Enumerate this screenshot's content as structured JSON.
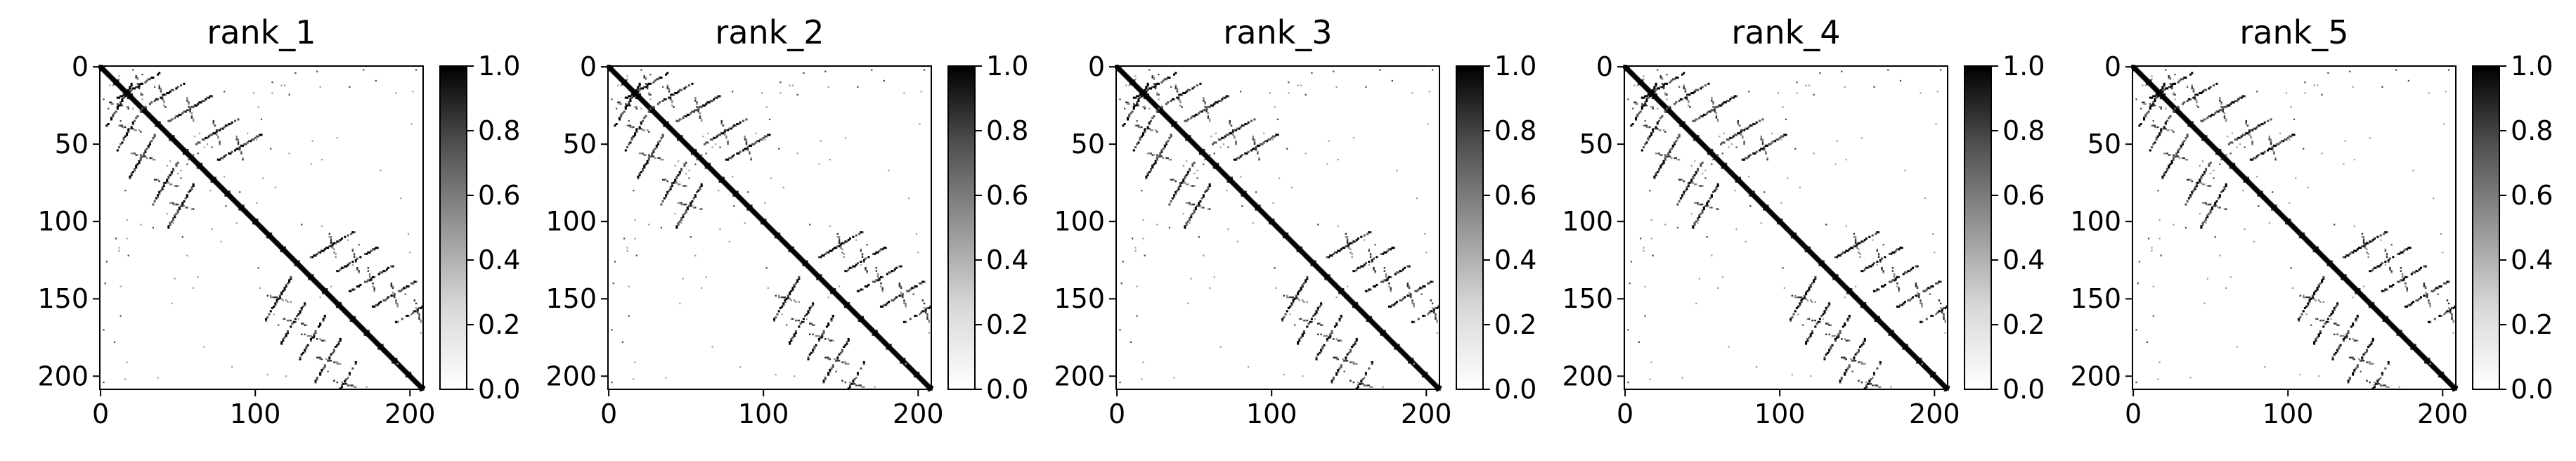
{
  "figure": {
    "background": "#ffffff"
  },
  "chart_data": [
    {
      "type": "heatmap",
      "title": "rank_1",
      "xticks": [
        "0",
        "100",
        "200"
      ],
      "yticks": [
        "0",
        "50",
        "100",
        "150",
        "200"
      ],
      "xlim": [
        0,
        209
      ],
      "ylim": [
        209,
        0
      ],
      "matrix_size": 209,
      "colorbar": {
        "min": 0.0,
        "max": 1.0,
        "ticks": [
          "0.0",
          "0.2",
          "0.4",
          "0.6",
          "0.8",
          "1.0"
        ],
        "colormap": "Greys"
      },
      "features": {
        "main_diagonal": {
          "from": 0,
          "to": 208,
          "value": 1.0
        },
        "off_diagonal_arcs": [
          {
            "i": 5,
            "j": 25
          },
          {
            "i": 12,
            "j": 40
          },
          {
            "i": 20,
            "j": 58
          },
          {
            "i": 35,
            "j": 75
          },
          {
            "i": 45,
            "j": 90
          },
          {
            "i": 108,
            "j": 150
          },
          {
            "i": 118,
            "j": 165
          },
          {
            "i": 130,
            "j": 175
          },
          {
            "i": 140,
            "j": 190
          },
          {
            "i": 150,
            "j": 205
          }
        ]
      }
    },
    {
      "type": "heatmap",
      "title": "rank_2",
      "xticks": [
        "0",
        "100",
        "200"
      ],
      "yticks": [
        "0",
        "50",
        "100",
        "150",
        "200"
      ],
      "xlim": [
        0,
        209
      ],
      "ylim": [
        209,
        0
      ],
      "matrix_size": 209,
      "colorbar": {
        "min": 0.0,
        "max": 1.0,
        "ticks": [
          "0.0",
          "0.2",
          "0.4",
          "0.6",
          "0.8",
          "1.0"
        ],
        "colormap": "Greys"
      },
      "features": {
        "main_diagonal": {
          "from": 0,
          "to": 208,
          "value": 1.0
        },
        "off_diagonal_arcs": [
          {
            "i": 5,
            "j": 25
          },
          {
            "i": 12,
            "j": 40
          },
          {
            "i": 20,
            "j": 58
          },
          {
            "i": 35,
            "j": 75
          },
          {
            "i": 45,
            "j": 90
          },
          {
            "i": 108,
            "j": 150
          },
          {
            "i": 118,
            "j": 165
          },
          {
            "i": 130,
            "j": 175
          },
          {
            "i": 140,
            "j": 190
          },
          {
            "i": 150,
            "j": 205
          }
        ]
      }
    },
    {
      "type": "heatmap",
      "title": "rank_3",
      "xticks": [
        "0",
        "100",
        "200"
      ],
      "yticks": [
        "0",
        "50",
        "100",
        "150",
        "200"
      ],
      "xlim": [
        0,
        209
      ],
      "ylim": [
        209,
        0
      ],
      "matrix_size": 209,
      "colorbar": {
        "min": 0.0,
        "max": 1.0,
        "ticks": [
          "0.0",
          "0.2",
          "0.4",
          "0.6",
          "0.8",
          "1.0"
        ],
        "colormap": "Greys"
      },
      "features": {
        "main_diagonal": {
          "from": 0,
          "to": 208,
          "value": 1.0
        },
        "off_diagonal_arcs": [
          {
            "i": 5,
            "j": 25
          },
          {
            "i": 12,
            "j": 40
          },
          {
            "i": 20,
            "j": 58
          },
          {
            "i": 35,
            "j": 75
          },
          {
            "i": 45,
            "j": 90
          },
          {
            "i": 108,
            "j": 150
          },
          {
            "i": 118,
            "j": 165
          },
          {
            "i": 130,
            "j": 175
          },
          {
            "i": 140,
            "j": 190
          },
          {
            "i": 150,
            "j": 205
          }
        ]
      }
    },
    {
      "type": "heatmap",
      "title": "rank_4",
      "xticks": [
        "0",
        "100",
        "200"
      ],
      "yticks": [
        "0",
        "50",
        "100",
        "150",
        "200"
      ],
      "xlim": [
        0,
        209
      ],
      "ylim": [
        209,
        0
      ],
      "matrix_size": 209,
      "colorbar": {
        "min": 0.0,
        "max": 1.0,
        "ticks": [
          "0.0",
          "0.2",
          "0.4",
          "0.6",
          "0.8",
          "1.0"
        ],
        "colormap": "Greys"
      },
      "features": {
        "main_diagonal": {
          "from": 0,
          "to": 208,
          "value": 1.0
        },
        "off_diagonal_arcs": [
          {
            "i": 5,
            "j": 25
          },
          {
            "i": 12,
            "j": 40
          },
          {
            "i": 20,
            "j": 58
          },
          {
            "i": 35,
            "j": 75
          },
          {
            "i": 45,
            "j": 90
          },
          {
            "i": 108,
            "j": 150
          },
          {
            "i": 118,
            "j": 165
          },
          {
            "i": 130,
            "j": 175
          },
          {
            "i": 140,
            "j": 190
          },
          {
            "i": 150,
            "j": 205
          }
        ]
      }
    },
    {
      "type": "heatmap",
      "title": "rank_5",
      "xticks": [
        "0",
        "100",
        "200"
      ],
      "yticks": [
        "0",
        "50",
        "100",
        "150",
        "200"
      ],
      "xlim": [
        0,
        209
      ],
      "ylim": [
        209,
        0
      ],
      "matrix_size": 209,
      "colorbar": {
        "min": 0.0,
        "max": 1.0,
        "ticks": [
          "0.0",
          "0.2",
          "0.4",
          "0.6",
          "0.8",
          "1.0"
        ],
        "colormap": "Greys"
      },
      "features": {
        "main_diagonal": {
          "from": 0,
          "to": 208,
          "value": 1.0
        },
        "off_diagonal_arcs": [
          {
            "i": 5,
            "j": 25
          },
          {
            "i": 12,
            "j": 40
          },
          {
            "i": 20,
            "j": 58
          },
          {
            "i": 35,
            "j": 75
          },
          {
            "i": 45,
            "j": 90
          },
          {
            "i": 108,
            "j": 150
          },
          {
            "i": 118,
            "j": 165
          },
          {
            "i": 130,
            "j": 175
          },
          {
            "i": 140,
            "j": 190
          },
          {
            "i": 150,
            "j": 205
          }
        ]
      }
    }
  ]
}
